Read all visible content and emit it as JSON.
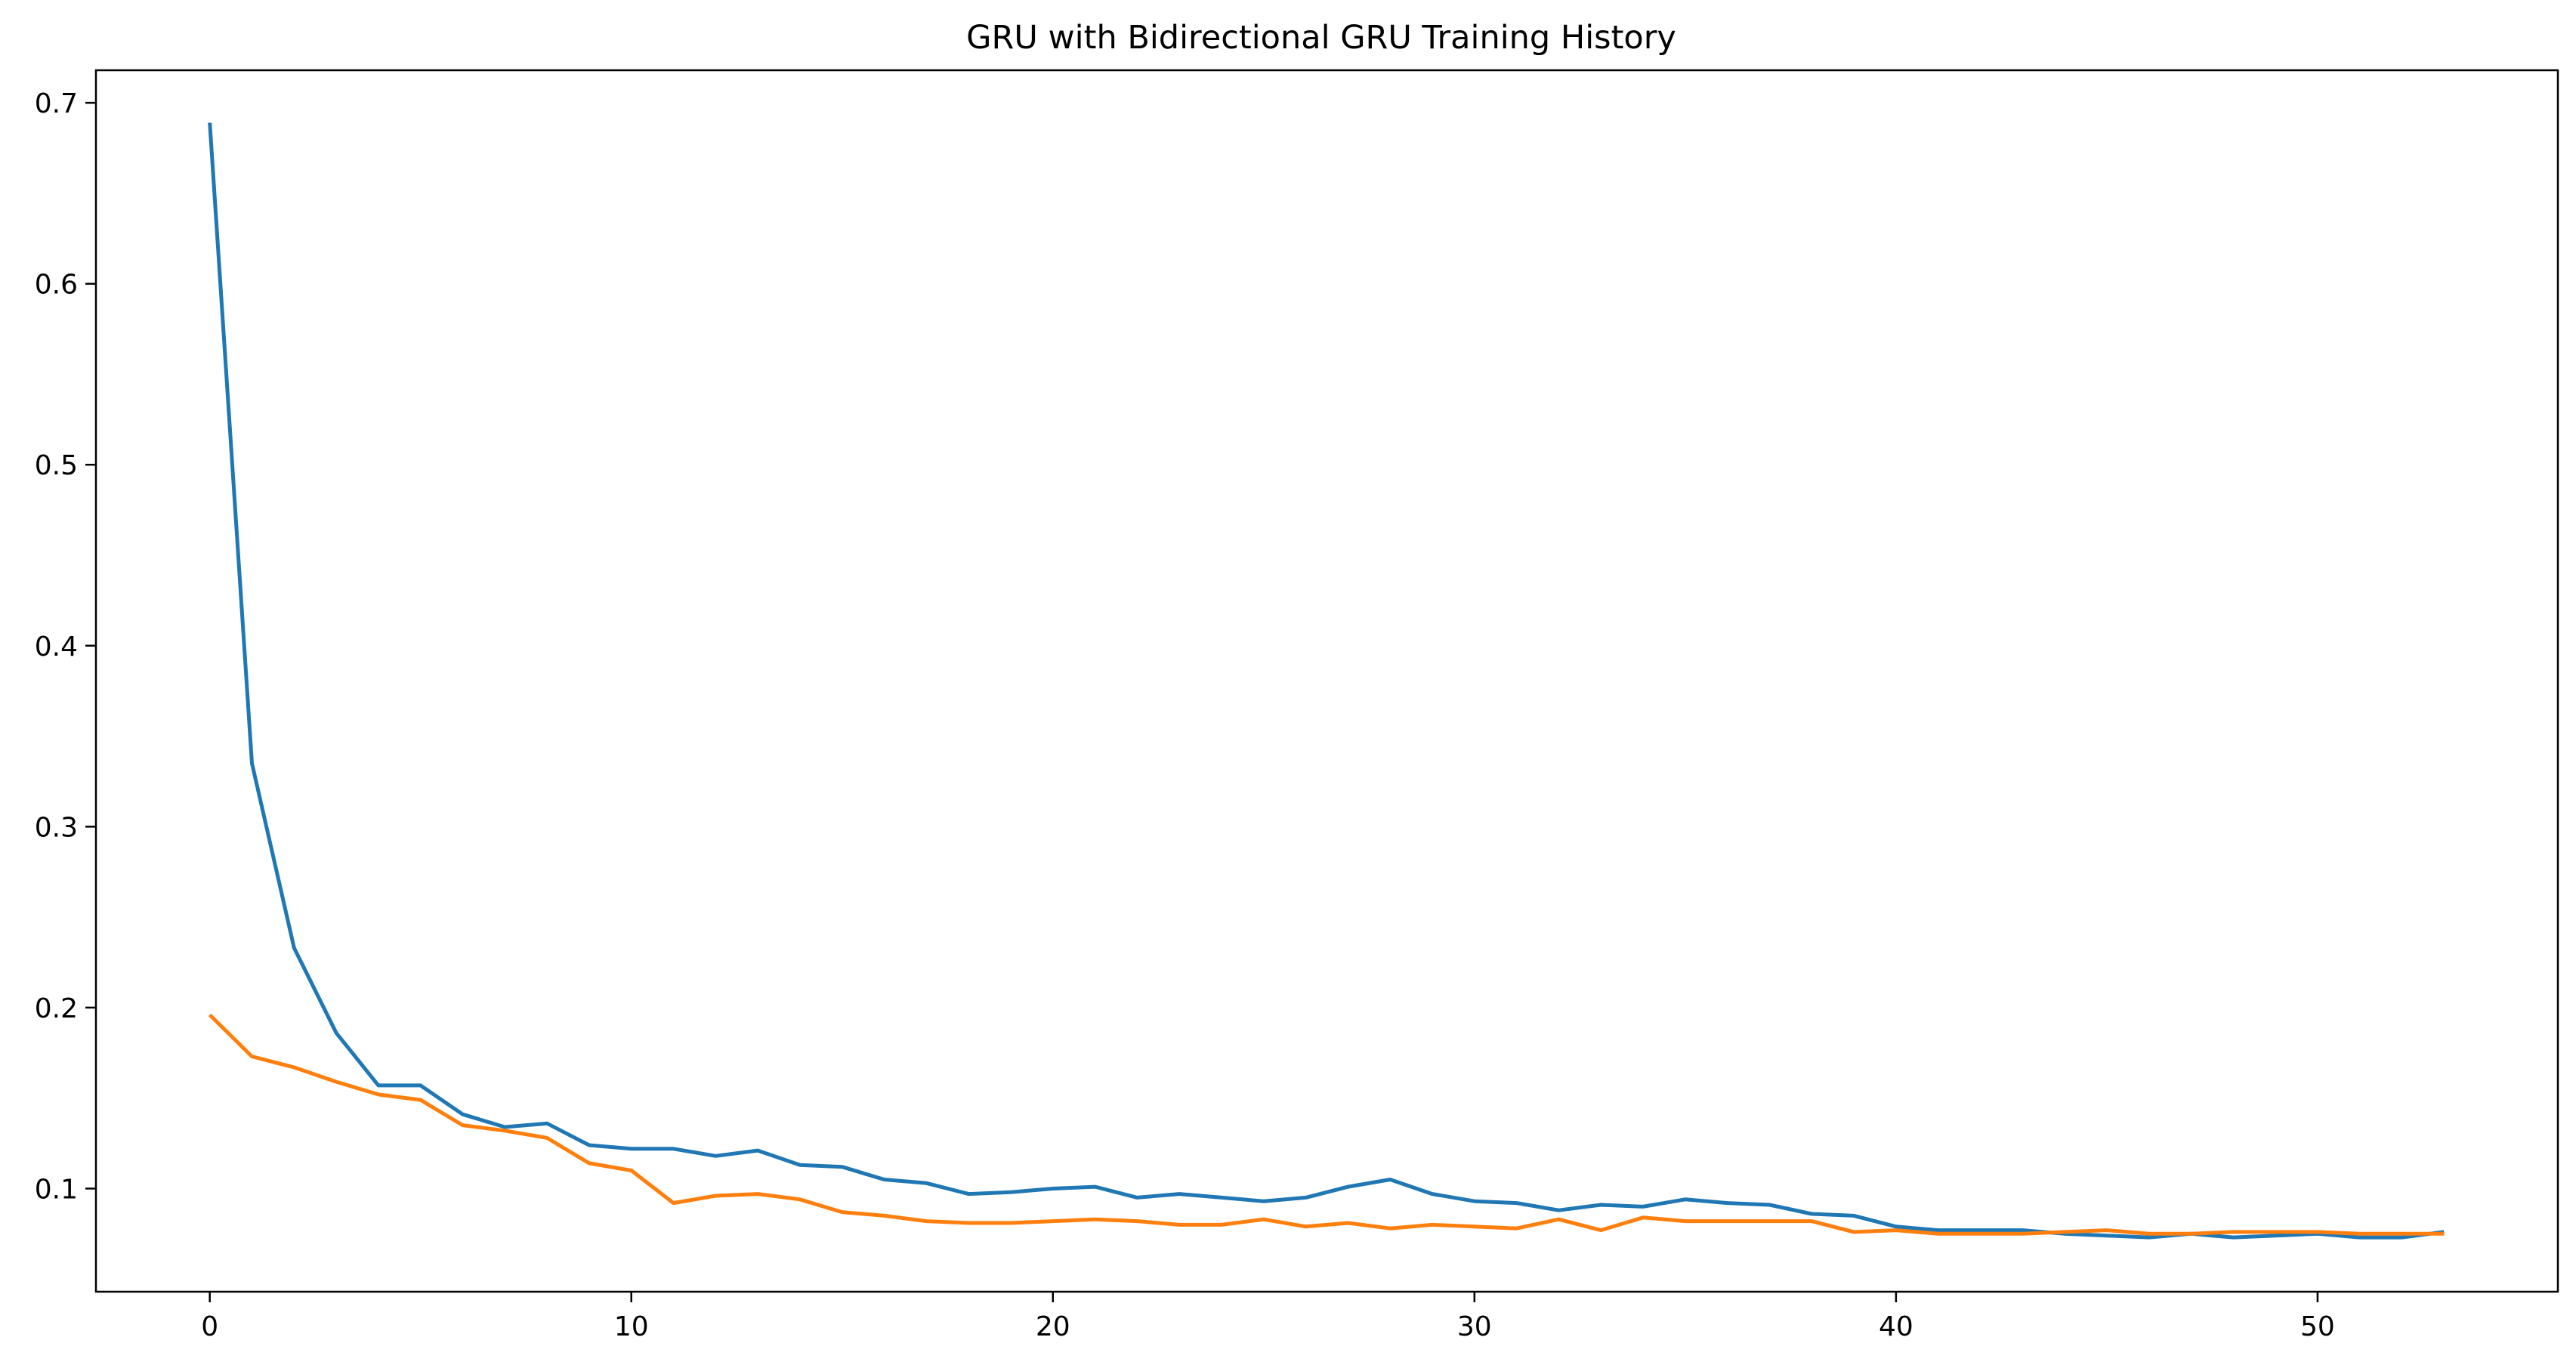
{
  "chart_data": {
    "type": "line",
    "title": "GRU with Bidirectional GRU Training History",
    "xlabel": "",
    "ylabel": "",
    "xlim": [
      -2.7,
      55.7
    ],
    "ylim": [
      0.043,
      0.718
    ],
    "x_ticks": [
      0,
      10,
      20,
      30,
      40,
      50
    ],
    "x_tick_labels": [
      "0",
      "10",
      "20",
      "30",
      "40",
      "50"
    ],
    "y_ticks": [
      0.1,
      0.2,
      0.3,
      0.4,
      0.5,
      0.6,
      0.7
    ],
    "y_tick_labels": [
      "0.1",
      "0.2",
      "0.3",
      "0.4",
      "0.5",
      "0.6",
      "0.7"
    ],
    "grid": false,
    "legend": "none",
    "x": [
      0,
      1,
      2,
      3,
      4,
      5,
      6,
      7,
      8,
      9,
      10,
      11,
      12,
      13,
      14,
      15,
      16,
      17,
      18,
      19,
      20,
      21,
      22,
      23,
      24,
      25,
      26,
      27,
      28,
      29,
      30,
      31,
      32,
      33,
      34,
      35,
      36,
      37,
      38,
      39,
      40,
      41,
      42,
      43,
      44,
      45,
      46,
      47,
      48,
      49,
      50,
      51,
      52,
      53
    ],
    "series": [
      {
        "color": "#1f77b4",
        "values": [
          0.689,
          0.335,
          0.233,
          0.186,
          0.157,
          0.157,
          0.141,
          0.134,
          0.136,
          0.124,
          0.122,
          0.122,
          0.118,
          0.121,
          0.113,
          0.112,
          0.105,
          0.103,
          0.097,
          0.098,
          0.1,
          0.101,
          0.095,
          0.097,
          0.095,
          0.093,
          0.095,
          0.101,
          0.105,
          0.097,
          0.093,
          0.092,
          0.088,
          0.091,
          0.09,
          0.094,
          0.092,
          0.091,
          0.086,
          0.085,
          0.079,
          0.077,
          0.077,
          0.077,
          0.075,
          0.074,
          0.073,
          0.075,
          0.073,
          0.074,
          0.075,
          0.073,
          0.073,
          0.076
        ]
      },
      {
        "color": "#ff7f0e",
        "values": [
          0.196,
          0.173,
          0.167,
          0.159,
          0.152,
          0.149,
          0.135,
          0.132,
          0.128,
          0.114,
          0.11,
          0.092,
          0.096,
          0.097,
          0.094,
          0.087,
          0.085,
          0.082,
          0.081,
          0.081,
          0.082,
          0.083,
          0.082,
          0.08,
          0.08,
          0.083,
          0.079,
          0.081,
          0.078,
          0.08,
          0.079,
          0.078,
          0.083,
          0.077,
          0.084,
          0.082,
          0.082,
          0.082,
          0.082,
          0.076,
          0.077,
          0.075,
          0.075,
          0.075,
          0.076,
          0.077,
          0.075,
          0.075,
          0.076,
          0.076,
          0.076,
          0.075,
          0.075,
          0.075
        ]
      }
    ]
  }
}
